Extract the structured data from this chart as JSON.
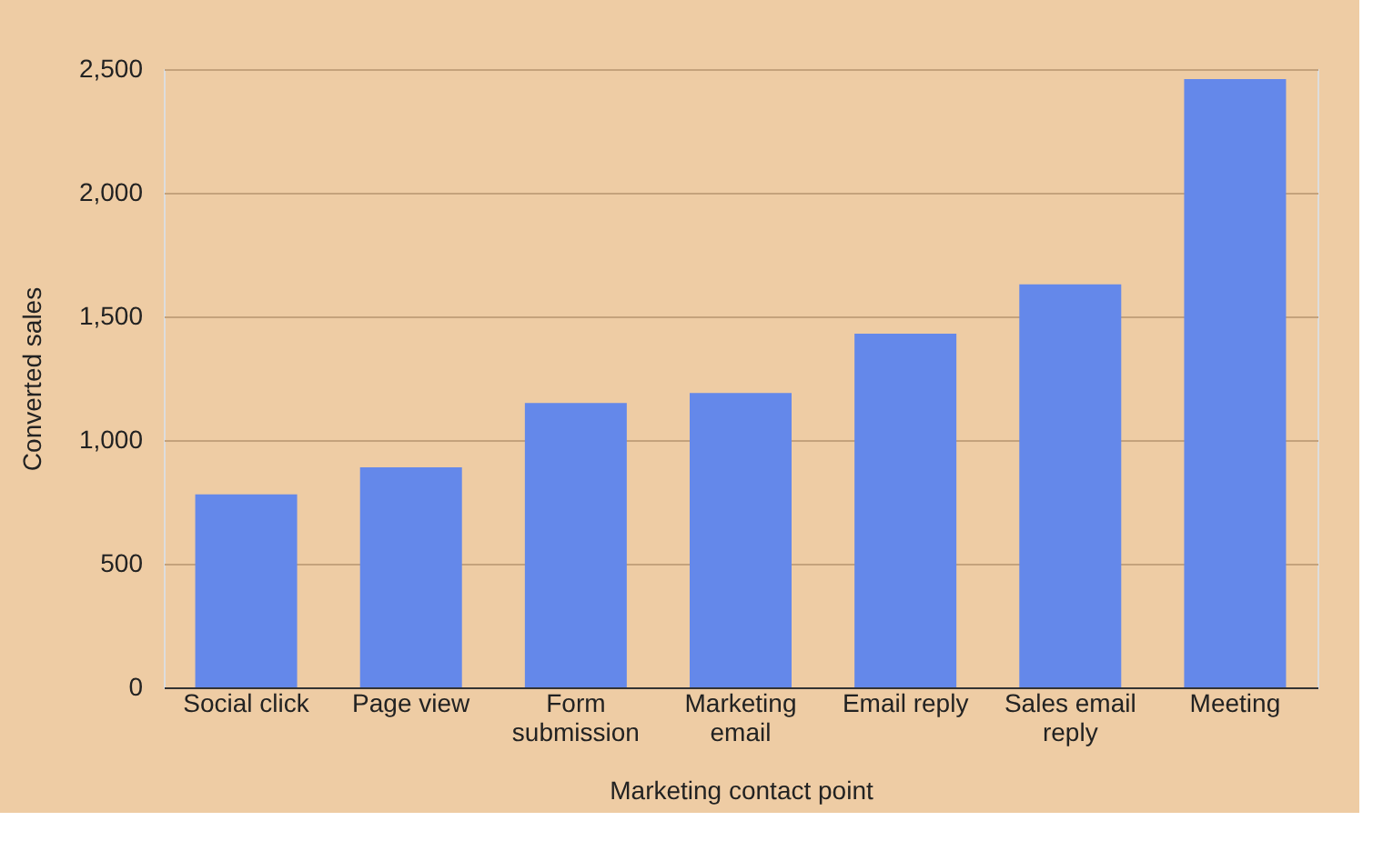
{
  "chart_data": {
    "type": "bar",
    "xlabel": "Marketing contact point",
    "ylabel": "Converted sales",
    "categories": [
      "Social click",
      "Page view",
      "Form submission",
      "Marketing email",
      "Email reply",
      "Sales email reply",
      "Meeting"
    ],
    "values": [
      780,
      890,
      1150,
      1190,
      1430,
      1630,
      2460
    ],
    "color": "#6488ea",
    "ylim": [
      0,
      2500
    ],
    "yticks": [
      0,
      500,
      {
        "value": 1000,
        "label": "1,000"
      },
      {
        "value": 1500,
        "label": "1,500"
      },
      {
        "value": 2000,
        "label": "2,000"
      },
      {
        "value": 2500,
        "label": "2,500"
      }
    ],
    "grid": "y"
  }
}
